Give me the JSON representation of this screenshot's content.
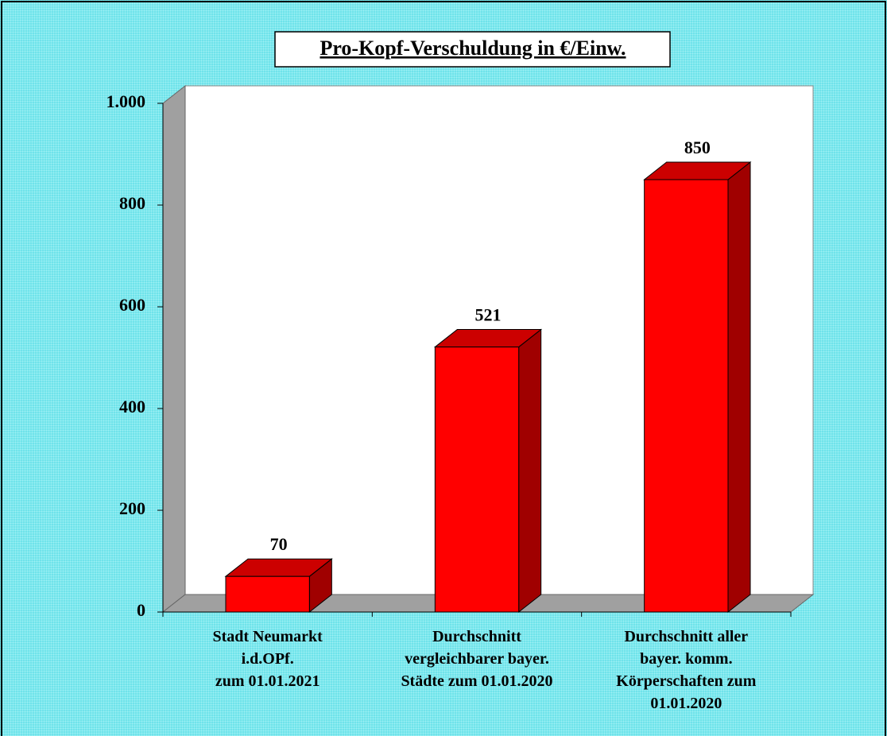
{
  "chart_data": {
    "type": "bar3d",
    "title": "Pro-Kopf-Verschuldung in €/Einw.",
    "categories": [
      "Stadt Neumarkt\ni.d.OPf.\nzum 01.01.2021",
      "Durchschnitt\nvergleichbarer bayer.\nStädte zum 01.01.2020",
      "Durchschnitt aller\nbayer. komm.\nKörperschaften zum\n01.01.2020"
    ],
    "values": [
      70,
      521,
      850
    ],
    "color": "#ff0000",
    "ylim": [
      0,
      1000
    ],
    "yticks": [
      0,
      200,
      400,
      600,
      800,
      {
        "value": 1000,
        "label": "1.000"
      }
    ]
  }
}
